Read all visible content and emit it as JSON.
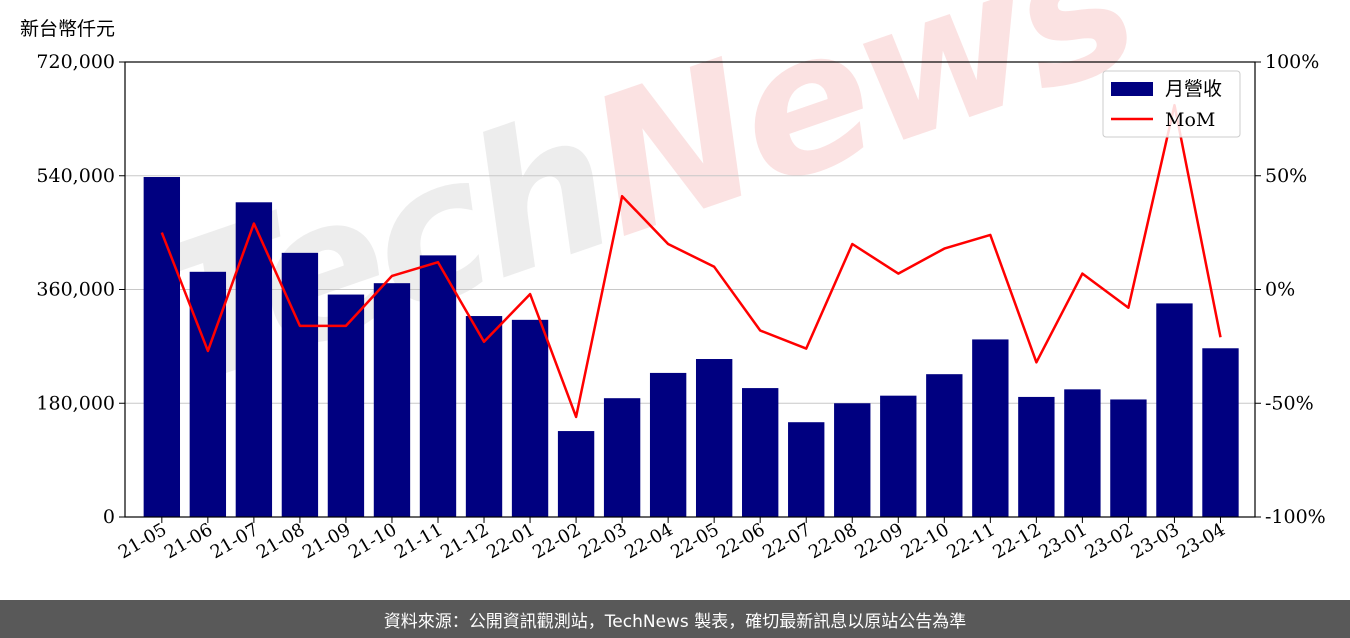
{
  "unit_label": "新台幣仟元",
  "footer": "資料來源：公開資訊觀測站，TechNews 製表，確切最新訊息以原站公告為準",
  "watermark": {
    "part1": "Tech",
    "part2": "News"
  },
  "colors": {
    "bar": "#000080",
    "line": "#ff0000",
    "footer_bg": "#595959"
  },
  "chart_data": {
    "type": "bar",
    "categories": [
      "21-05",
      "21-06",
      "21-07",
      "21-08",
      "21-09",
      "21-10",
      "21-11",
      "21-12",
      "22-01",
      "22-02",
      "22-03",
      "22-04",
      "22-05",
      "22-06",
      "22-07",
      "22-08",
      "22-09",
      "22-10",
      "22-11",
      "22-12",
      "23-01",
      "23-02",
      "23-03",
      "23-04"
    ],
    "series": [
      {
        "name": "月營收",
        "type": "bar",
        "axis": "left",
        "values": [
          538000,
          388000,
          498000,
          418000,
          352000,
          370000,
          414000,
          318000,
          312000,
          136000,
          188000,
          228000,
          250000,
          204000,
          150000,
          180000,
          192000,
          226000,
          281000,
          190000,
          202000,
          186000,
          338000,
          267000
        ]
      },
      {
        "name": "MoM",
        "type": "line",
        "axis": "right",
        "values": [
          25,
          -27,
          29,
          -16,
          -16,
          6,
          12,
          -23,
          -2,
          -56,
          41,
          20,
          10,
          -18,
          -26,
          20,
          7,
          18,
          24,
          -32,
          7,
          -8,
          81,
          -21
        ]
      }
    ],
    "y_left": {
      "min": 0,
      "max": 720000,
      "ticks": [
        "0",
        "180,000",
        "360,000",
        "540,000",
        "720,000"
      ],
      "tick_values": [
        0,
        180000,
        360000,
        540000,
        720000
      ]
    },
    "y_right": {
      "min": -100,
      "max": 100,
      "ticks": [
        "-100%",
        "-50%",
        "0%",
        "50%",
        "100%"
      ],
      "tick_values": [
        -100,
        -50,
        0,
        50,
        100
      ]
    },
    "grid": "horizontal",
    "legend_position": "top-right"
  }
}
